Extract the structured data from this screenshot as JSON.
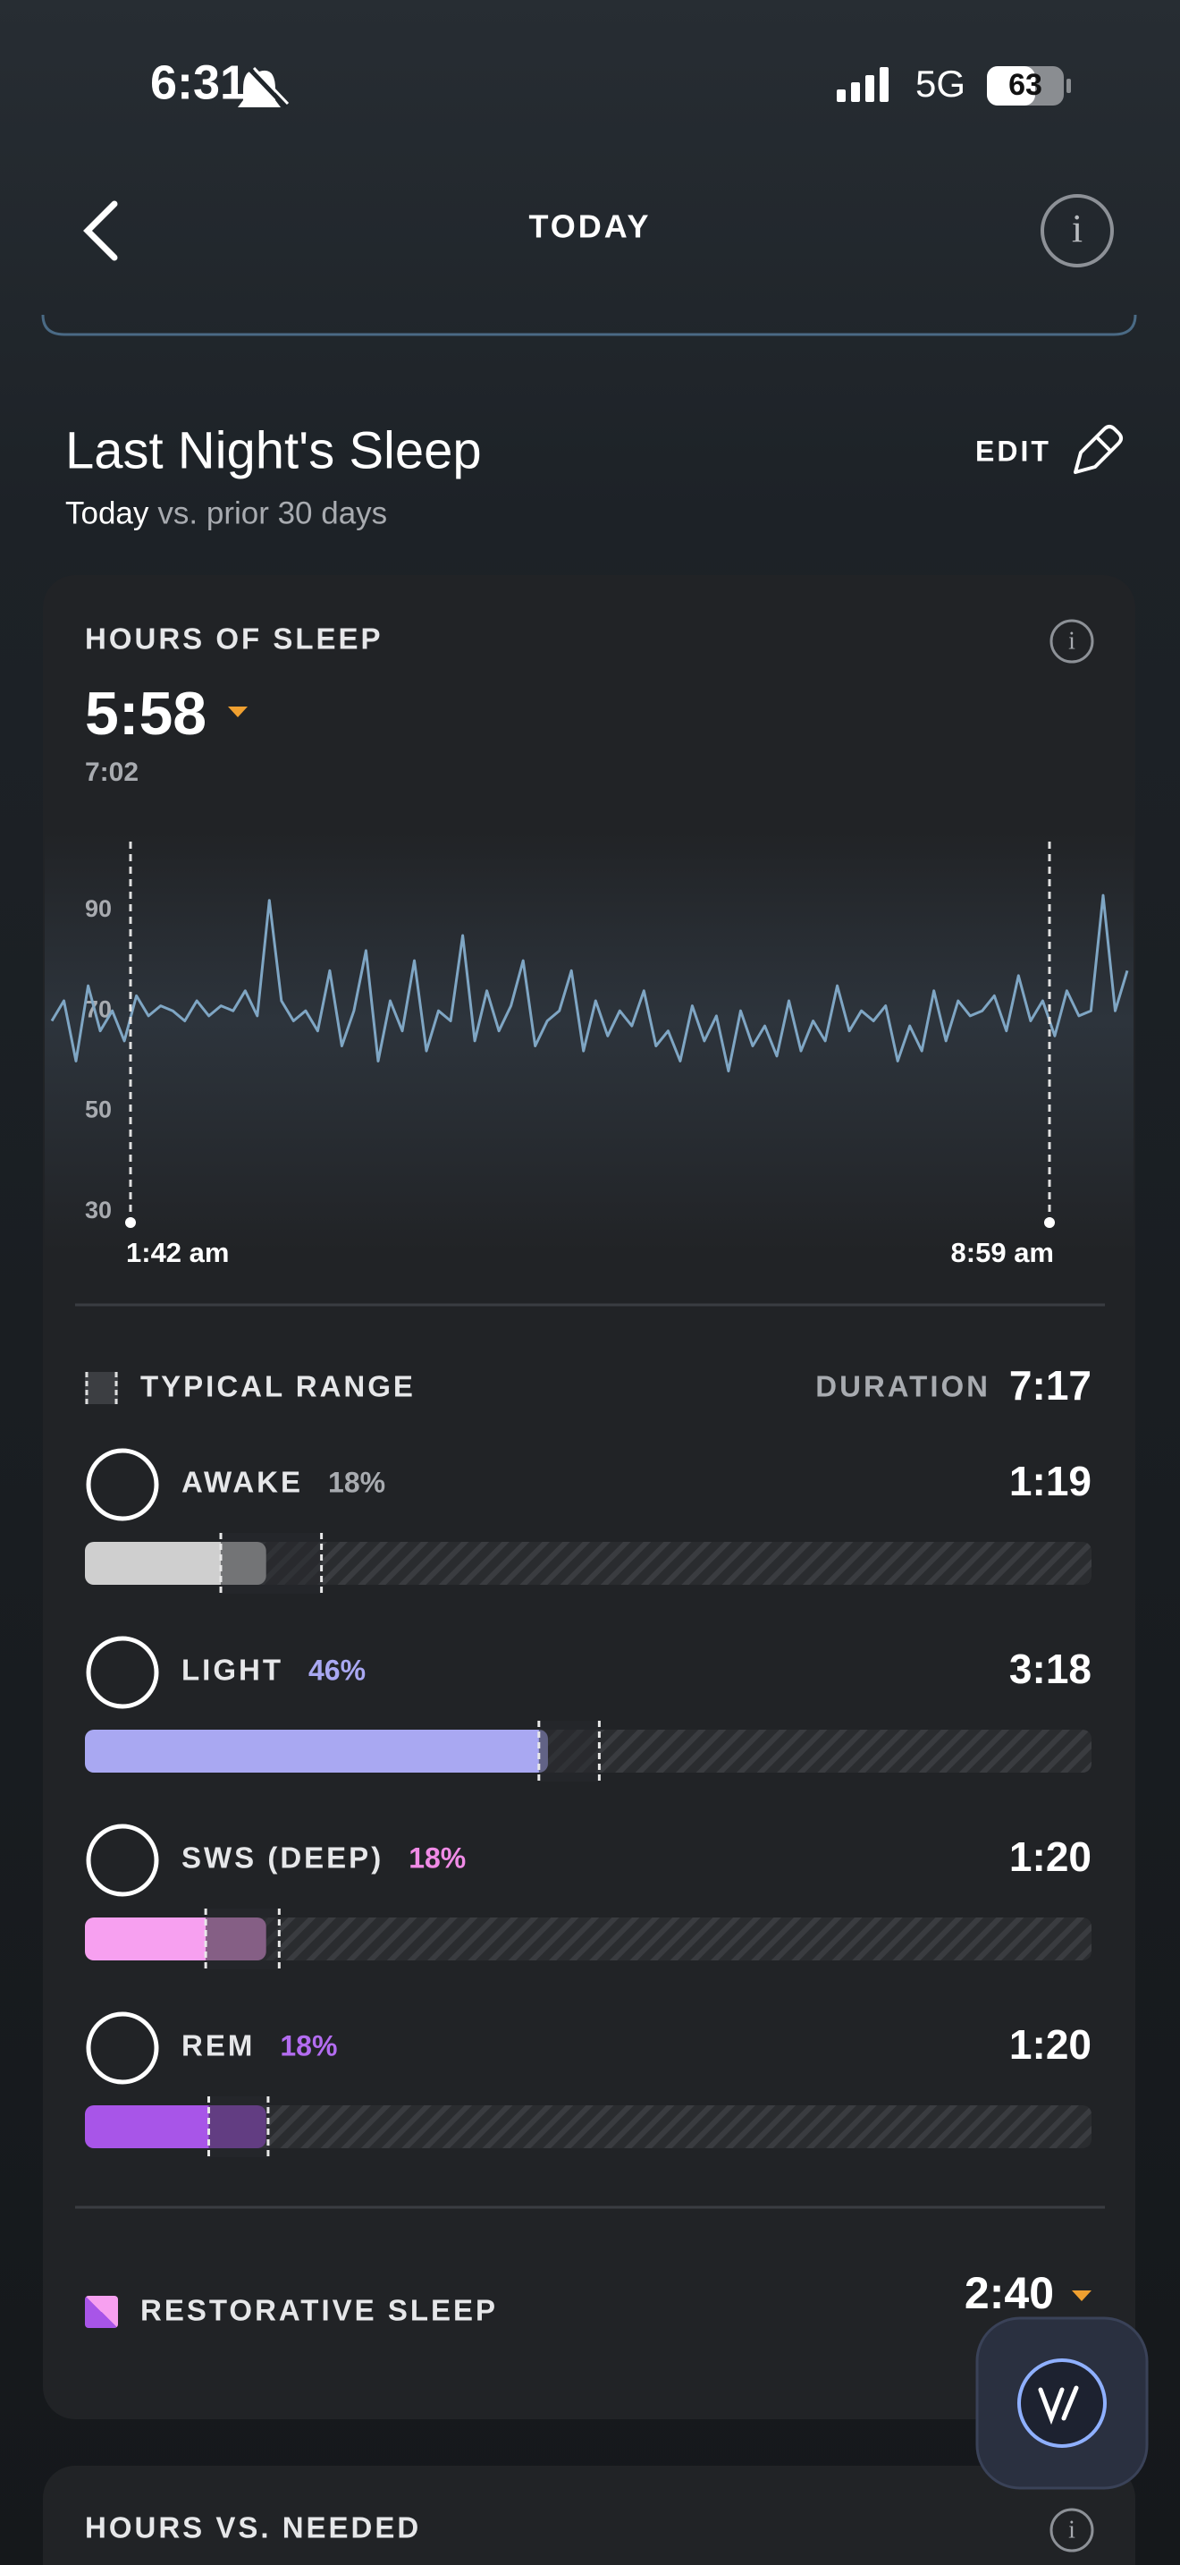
{
  "status_bar": {
    "time": "6:31",
    "network": "5G",
    "battery": "63"
  },
  "header": {
    "title": "TODAY"
  },
  "section": {
    "title": "Last Night's Sleep",
    "subtitle_bold": "Today",
    "subtitle": "vs. prior 30 days",
    "edit": "EDIT"
  },
  "hours_card": {
    "title": "HOURS OF SLEEP",
    "value": "5:58",
    "typical": "7:02",
    "hr_chart": {
      "type": "line",
      "color": "#7fa6c4",
      "ylim": [
        28,
        103
      ],
      "yticks": [
        30,
        50,
        70,
        90
      ],
      "start_label": "1:42 am",
      "end_label": "8:59 am",
      "values": [
        68,
        72,
        60,
        75,
        66,
        70,
        64,
        73,
        69,
        71,
        70,
        68,
        72,
        69,
        71,
        70,
        74,
        69,
        92,
        72,
        68,
        70,
        66,
        78,
        63,
        70,
        82,
        60,
        72,
        66,
        80,
        62,
        70,
        68,
        85,
        64,
        74,
        66,
        71,
        80,
        63,
        68,
        70,
        78,
        62,
        72,
        65,
        70,
        67,
        74,
        63,
        66,
        60,
        71,
        64,
        69,
        58,
        70,
        63,
        67,
        61,
        72,
        62,
        68,
        64,
        75,
        66,
        70,
        68,
        71,
        60,
        67,
        62,
        74,
        64,
        72,
        69,
        70,
        73,
        66,
        77,
        68,
        72,
        65,
        74,
        69,
        70,
        93,
        70,
        78
      ]
    }
  },
  "legend": {
    "typical_range": "TYPICAL RANGE",
    "duration_label": "DURATION",
    "duration": "7:17"
  },
  "stages": [
    {
      "name": "AWAKE",
      "percent": 18,
      "percent_label": "18%",
      "duration": "1:19",
      "color": "#cfcfcf",
      "label_color": "#a8abb0",
      "typical_range": [
        13.5,
        23.5
      ]
    },
    {
      "name": "LIGHT",
      "percent": 46,
      "percent_label": "46%",
      "duration": "3:18",
      "color": "#a9a8f2",
      "label_color": "#a9a8f2",
      "typical_range": [
        45.1,
        51.1
      ]
    },
    {
      "name": "SWS (DEEP)",
      "percent": 18,
      "percent_label": "18%",
      "duration": "1:20",
      "color": "#f7a0f0",
      "label_color": "#f08be6",
      "typical_range": [
        12.0,
        19.3
      ]
    },
    {
      "name": "REM",
      "percent": 18,
      "percent_label": "18%",
      "duration": "1:20",
      "color": "#a855e8",
      "label_color": "#b36cf0",
      "typical_range": [
        12.3,
        18.2
      ]
    }
  ],
  "restorative": {
    "label": "RESTORATIVE SLEEP",
    "value": "2:40"
  },
  "next_card": {
    "title": "HOURS VS. NEEDED"
  }
}
